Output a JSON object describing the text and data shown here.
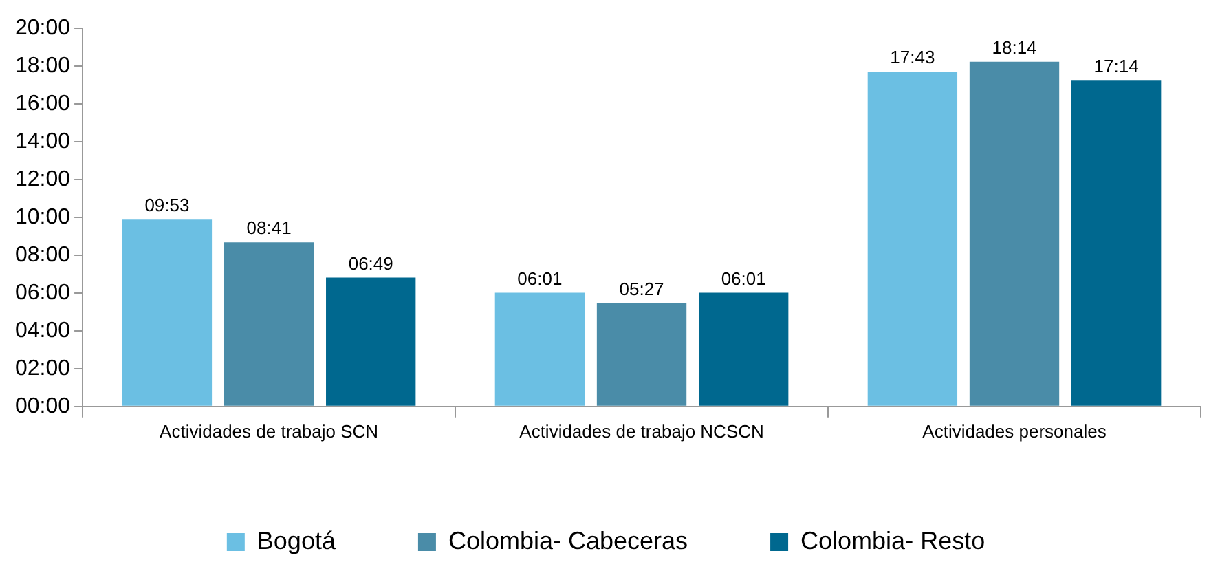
{
  "chart_data": {
    "type": "bar",
    "categories": [
      "Actividades de trabajo SCN",
      "Actividades de trabajo NCSCN",
      "Actividades personales"
    ],
    "series": [
      {
        "name": "Bogotá",
        "color": "#6bbfe3",
        "values": [
          9.883,
          6.017,
          17.717
        ],
        "value_labels": [
          "09:53",
          "06:01",
          "17:43"
        ]
      },
      {
        "name": "Colombia- Cabeceras",
        "color": "#4a8ca8",
        "values": [
          8.683,
          5.45,
          18.233
        ],
        "value_labels": [
          "08:41",
          "05:27",
          "18:14"
        ]
      },
      {
        "name": "Colombia- Resto",
        "color": "#00688f",
        "values": [
          6.817,
          6.017,
          17.233
        ],
        "value_labels": [
          "06:49",
          "06:01",
          "17:14"
        ]
      }
    ],
    "ylim": [
      0,
      20
    ],
    "yticks": [
      {
        "value": 0,
        "label": "00:00"
      },
      {
        "value": 2,
        "label": "02:00"
      },
      {
        "value": 4,
        "label": "04:00"
      },
      {
        "value": 6,
        "label": "06:00"
      },
      {
        "value": 8,
        "label": "08:00"
      },
      {
        "value": 10,
        "label": "10:00"
      },
      {
        "value": 12,
        "label": "12:00"
      },
      {
        "value": 14,
        "label": "14:00"
      },
      {
        "value": 16,
        "label": "16:00"
      },
      {
        "value": 18,
        "label": "18:00"
      },
      {
        "value": 20,
        "label": "20:00"
      }
    ],
    "grid": false,
    "legend": "bottom"
  }
}
